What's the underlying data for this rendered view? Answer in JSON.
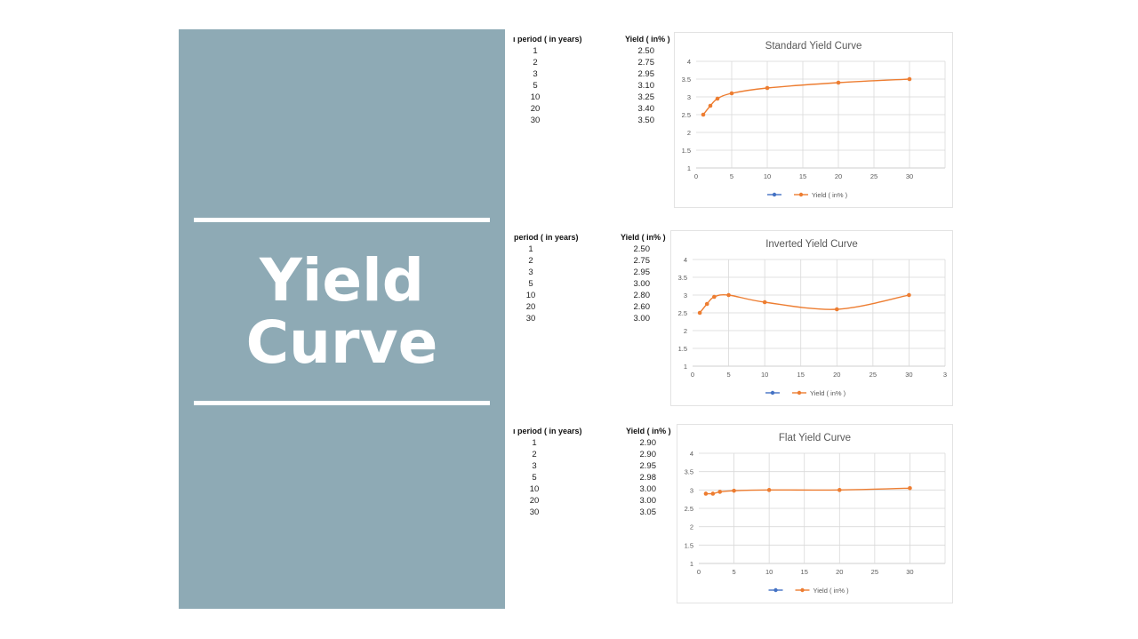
{
  "slide": {
    "title_line1": "Yield",
    "title_line2": "Curve"
  },
  "colors": {
    "panel": "#8eaab5",
    "series_blue": "#4472c4",
    "series_orange": "#ed7d31",
    "grid": "#d9d9d9"
  },
  "tables": [
    {
      "period_header": "ı period ( in years)",
      "yield_header": "Yield ( in% )",
      "rows": [
        {
          "period": "1",
          "yield": "2.50"
        },
        {
          "period": "2",
          "yield": "2.75"
        },
        {
          "period": "3",
          "yield": "2.95"
        },
        {
          "period": "5",
          "yield": "3.10"
        },
        {
          "period": "10",
          "yield": "3.25"
        },
        {
          "period": "20",
          "yield": "3.40"
        },
        {
          "period": "30",
          "yield": "3.50"
        }
      ]
    },
    {
      "period_header": "period ( in years)",
      "yield_header": "Yield ( in% )",
      "rows": [
        {
          "period": "1",
          "yield": "2.50"
        },
        {
          "period": "2",
          "yield": "2.75"
        },
        {
          "period": "3",
          "yield": "2.95"
        },
        {
          "period": "5",
          "yield": "3.00"
        },
        {
          "period": "10",
          "yield": "2.80"
        },
        {
          "period": "20",
          "yield": "2.60"
        },
        {
          "period": "30",
          "yield": "3.00"
        }
      ]
    },
    {
      "period_header": "ı period ( in years)",
      "yield_header": "Yield ( in% )",
      "rows": [
        {
          "period": "1",
          "yield": "2.90"
        },
        {
          "period": "2",
          "yield": "2.90"
        },
        {
          "period": "3",
          "yield": "2.95"
        },
        {
          "period": "5",
          "yield": "2.98"
        },
        {
          "period": "10",
          "yield": "3.00"
        },
        {
          "period": "20",
          "yield": "3.00"
        },
        {
          "period": "30",
          "yield": "3.05"
        }
      ]
    }
  ],
  "chart_data": [
    {
      "type": "line",
      "title": "Standard Yield Curve",
      "xlim": [
        0,
        35
      ],
      "ylim": [
        1,
        4
      ],
      "x_ticks": [
        "0",
        "5",
        "10",
        "15",
        "20",
        "25",
        "30"
      ],
      "y_ticks": [
        "1",
        "1.5",
        "2",
        "2.5",
        "3",
        "3.5",
        "4"
      ],
      "grid": true,
      "legend_position": "bottom",
      "series": [
        {
          "name": "",
          "color": "#4472c4",
          "x": [],
          "y": []
        },
        {
          "name": "Yield ( in% )",
          "color": "#ed7d31",
          "x": [
            1,
            2,
            3,
            5,
            10,
            20,
            30
          ],
          "y": [
            2.5,
            2.75,
            2.95,
            3.1,
            3.25,
            3.4,
            3.5
          ]
        }
      ]
    },
    {
      "type": "line",
      "title": "Inverted Yield Curve",
      "xlim": [
        0,
        35
      ],
      "ylim": [
        1,
        4
      ],
      "x_ticks": [
        "0",
        "5",
        "10",
        "15",
        "20",
        "25",
        "30",
        "3"
      ],
      "y_ticks": [
        "1",
        "1.5",
        "2",
        "2.5",
        "3",
        "3.5",
        "4"
      ],
      "grid": true,
      "legend_position": "bottom",
      "series": [
        {
          "name": "",
          "color": "#4472c4",
          "x": [],
          "y": []
        },
        {
          "name": "Yield ( in% )",
          "color": "#ed7d31",
          "x": [
            1,
            2,
            3,
            5,
            10,
            20,
            30
          ],
          "y": [
            2.5,
            2.75,
            2.95,
            3.0,
            2.8,
            2.6,
            3.0
          ]
        }
      ]
    },
    {
      "type": "line",
      "title": "Flat Yield Curve",
      "xlim": [
        0,
        35
      ],
      "ylim": [
        1,
        4
      ],
      "x_ticks": [
        "0",
        "5",
        "10",
        "15",
        "20",
        "25",
        "30"
      ],
      "y_ticks": [
        "1",
        "1.5",
        "2",
        "2.5",
        "3",
        "3.5",
        "4"
      ],
      "grid": true,
      "legend_position": "bottom",
      "series": [
        {
          "name": "",
          "color": "#4472c4",
          "x": [],
          "y": []
        },
        {
          "name": "Yield ( in% )",
          "color": "#ed7d31",
          "x": [
            1,
            2,
            3,
            5,
            10,
            20,
            30
          ],
          "y": [
            2.9,
            2.9,
            2.95,
            2.98,
            3.0,
            3.0,
            3.05
          ]
        }
      ]
    }
  ]
}
